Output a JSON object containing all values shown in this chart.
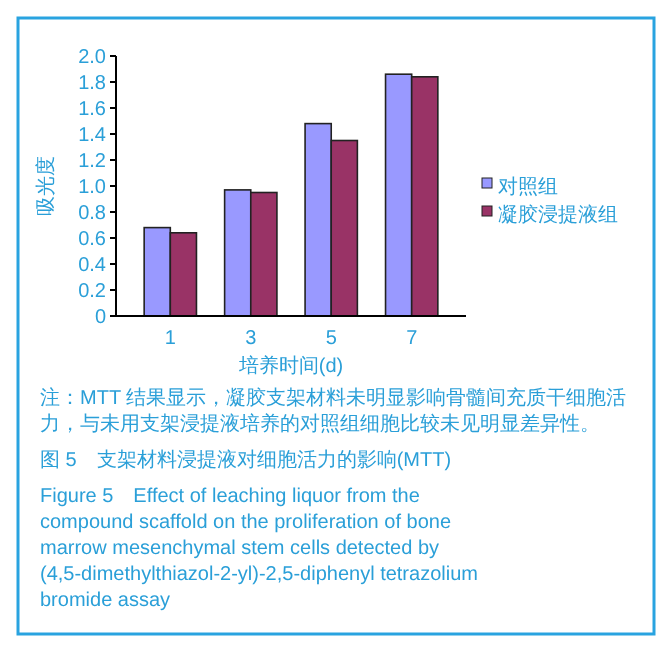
{
  "chart_data": {
    "type": "bar",
    "xlabel": "培养时间(d)",
    "ylabel": "吸光度",
    "categories": [
      "1",
      "3",
      "5",
      "7"
    ],
    "series": [
      {
        "name": "对照组",
        "color": "#9999ff",
        "values": [
          0.68,
          0.97,
          1.48,
          1.86
        ]
      },
      {
        "name": "凝胶浸提液组",
        "color": "#993366",
        "values": [
          0.64,
          0.95,
          1.35,
          1.84
        ]
      }
    ],
    "ylim": [
      0,
      2
    ],
    "yticks": [
      0,
      0.2,
      0.4,
      0.6,
      0.8,
      {
        "value": 1,
        "label": "1.0"
      },
      1.2,
      1.4,
      1.6,
      1.8,
      {
        "value": 2,
        "label": "2.0"
      }
    ],
    "grid": false,
    "legend": "right",
    "annotations": [
      "注：MTT 结果显示，凝胶支架材料未明显影响骨髓间充质干细胞活力，与未用支架浸提液培养的对照组细胞比较未见明显差异性。",
      "图 5　支架材料浸提液对细胞活力的影响(MTT)",
      "Figure 5　Effect of leaching liquor from the compound scaffold on the proliferation of bone marrow mesenchymal stem cells detected by (4,5-dimethylthiazol-2-yl)-2,5-diphenyl tetrazolium bromide assay"
    ]
  }
}
